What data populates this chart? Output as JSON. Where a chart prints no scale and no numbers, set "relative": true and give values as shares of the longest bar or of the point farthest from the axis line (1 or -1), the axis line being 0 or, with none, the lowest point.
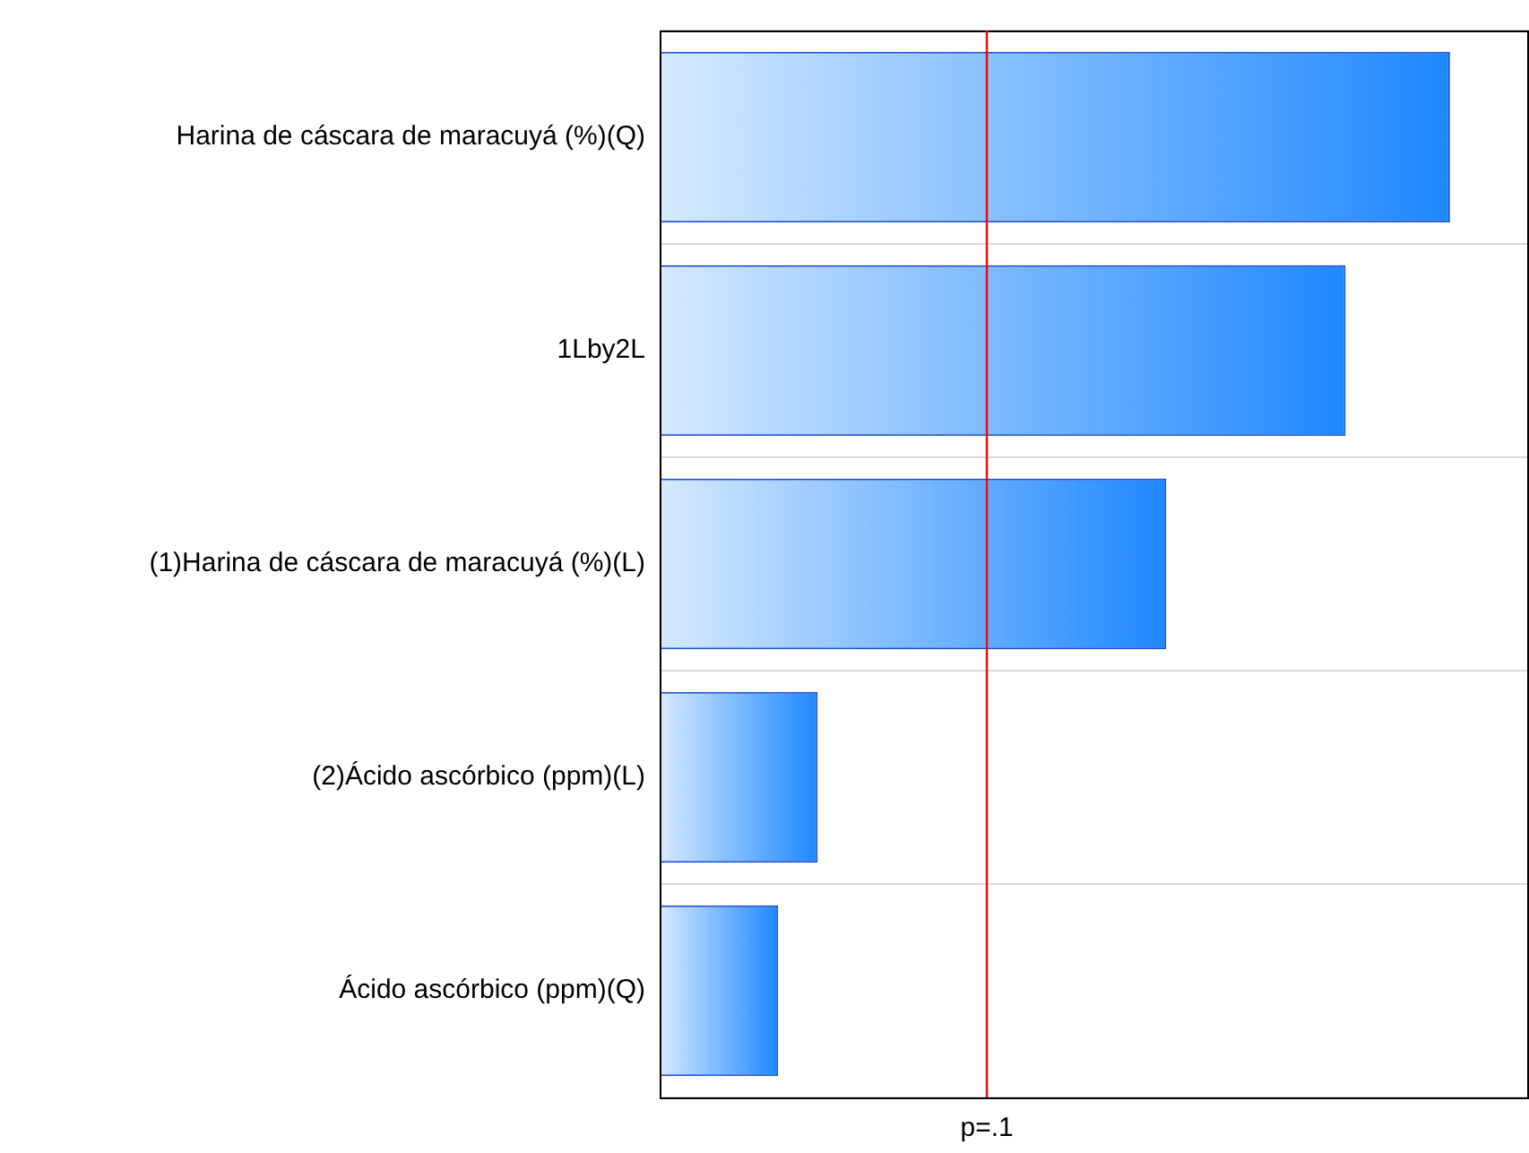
{
  "chart_data": {
    "type": "bar",
    "orientation": "horizontal",
    "relative": true,
    "categories": [
      "Harina de cáscara de maracuyá (%)(Q)",
      "1Lby2L",
      "(1)Harina de cáscara de maracuyá (%)(L)",
      "(2)Ácido ascórbico (ppm)(L)",
      "Ácido ascórbico (ppm)(Q)"
    ],
    "values": [
      1,
      0.868,
      0.641,
      0.2,
      0.15
    ],
    "color": "#1e88ff",
    "ref_lines": [
      {
        "axis": "x",
        "value": 0.414,
        "label": "p=.1",
        "color": "#ff0000"
      }
    ],
    "grid": "y",
    "legend": false
  }
}
